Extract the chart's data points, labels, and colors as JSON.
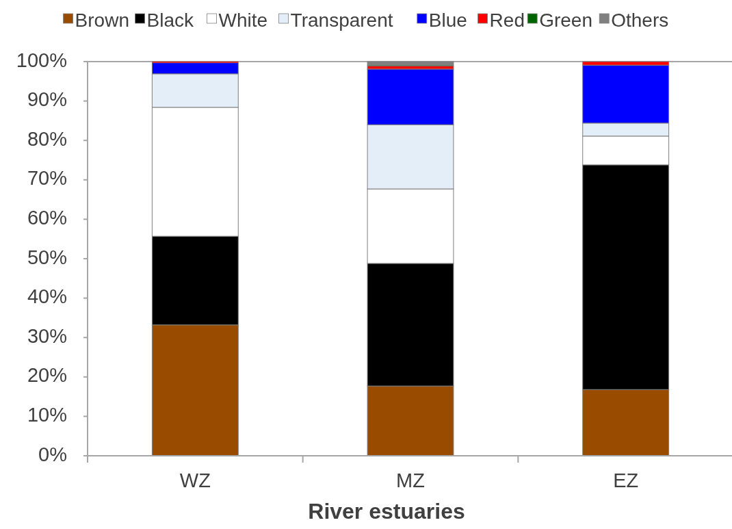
{
  "chart_data": {
    "type": "bar",
    "stacked": true,
    "xlabel": "River estuaries",
    "categories": [
      "WZ",
      "MZ",
      "EZ"
    ],
    "series": [
      {
        "name": "Brown",
        "color": "#994c00",
        "values": [
          33.2,
          17.7,
          16.8
        ]
      },
      {
        "name": "Black",
        "color": "#000000",
        "values": [
          22.5,
          31.1,
          57.0
        ]
      },
      {
        "name": "White",
        "color": "#ffffff",
        "values": [
          32.7,
          18.9,
          7.3
        ]
      },
      {
        "name": "Transparent",
        "color": "#e3eef9",
        "values": [
          8.5,
          16.3,
          3.3
        ]
      },
      {
        "name": "Blue",
        "color": "#0000ff",
        "values": [
          2.8,
          14.1,
          14.7
        ]
      },
      {
        "name": "Red",
        "color": "#ff0000",
        "values": [
          0.3,
          0.8,
          0.9
        ]
      },
      {
        "name": "Green",
        "color": "#006400",
        "values": [
          0,
          0.2,
          0
        ]
      },
      {
        "name": "Others",
        "color": "#808080",
        "values": [
          0,
          0.9,
          0
        ]
      }
    ],
    "ylim": [
      0,
      100
    ],
    "yticks": [
      {
        "value": 0,
        "label": "0%"
      },
      {
        "value": 10,
        "label": "10%"
      },
      {
        "value": 20,
        "label": "20%"
      },
      {
        "value": 30,
        "label": "30%"
      },
      {
        "value": 40,
        "label": "40%"
      },
      {
        "value": 50,
        "label": "50%"
      },
      {
        "value": 60,
        "label": "60%"
      },
      {
        "value": 70,
        "label": "70%"
      },
      {
        "value": 80,
        "label": "80%"
      },
      {
        "value": 90,
        "label": "90%"
      },
      {
        "value": 100,
        "label": "100%"
      }
    ],
    "legend": "top"
  }
}
